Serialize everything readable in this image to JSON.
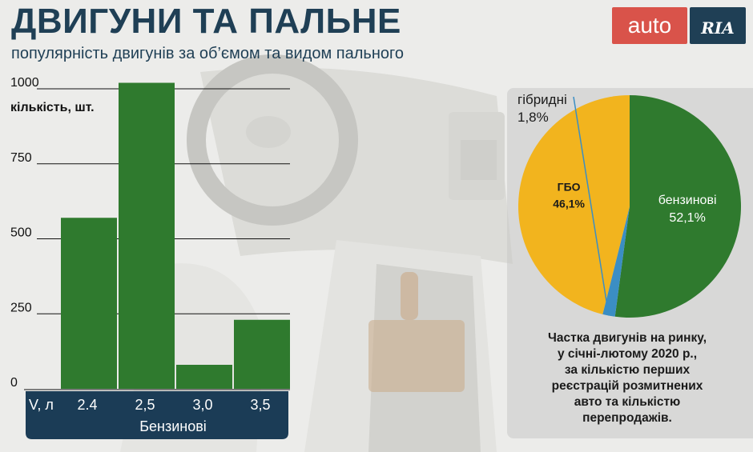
{
  "title": "ДВИГУНИ ТА ПАЛЬНЕ",
  "subtitle": "популярність двигунів за об’ємом та видом пального",
  "logo": {
    "auto_text": "auto",
    "ria_text": "RIA"
  },
  "colors": {
    "title": "#1f3f55",
    "bar": "#2f7a2e",
    "axis_band": "#1b3c56",
    "petrol": "#2f7a2e",
    "lpg": "#f2b41e",
    "hybrid": "#3b8ec4",
    "logo_red": "#d9534a"
  },
  "chart_data": [
    {
      "type": "bar",
      "ylabel": "кількість, шт.",
      "xlabel": "V, л",
      "category_group": "Бензинові",
      "categories": [
        "2.4",
        "2,5",
        "3,0",
        "3,5"
      ],
      "values": [
        570,
        1020,
        80,
        230
      ],
      "yticks": [
        0,
        250,
        500,
        750,
        1000
      ],
      "ylim": [
        0,
        1000
      ],
      "grid": true
    },
    {
      "type": "pie",
      "slices": [
        {
          "label": "бензинові",
          "value": 52.1,
          "value_label": "52,1%",
          "color": "#2f7a2e"
        },
        {
          "label": "гібридні",
          "value": 1.8,
          "value_label": "1,8%",
          "color": "#3b8ec4"
        },
        {
          "label": "ГБО",
          "value": 46.1,
          "value_label": "46,1%",
          "color": "#f2b41e"
        }
      ]
    }
  ],
  "note": [
    "Частка двигунів на ринку,",
    "у січні-лютому 2020 р.,",
    "за кількістю перших",
    "реєстрацій розмитнених",
    "авто та кількістю",
    "перепродажів."
  ]
}
